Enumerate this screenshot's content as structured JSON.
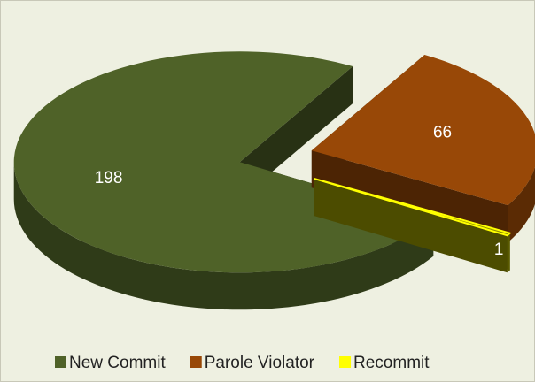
{
  "chart_data": {
    "type": "pie3d",
    "categories": [
      "New Commit",
      "Parole Violator",
      "Recommit"
    ],
    "values": [
      198,
      66,
      1
    ],
    "colors": [
      "#4f6228",
      "#984807",
      "#ffff00"
    ],
    "legend": "bottom"
  }
}
